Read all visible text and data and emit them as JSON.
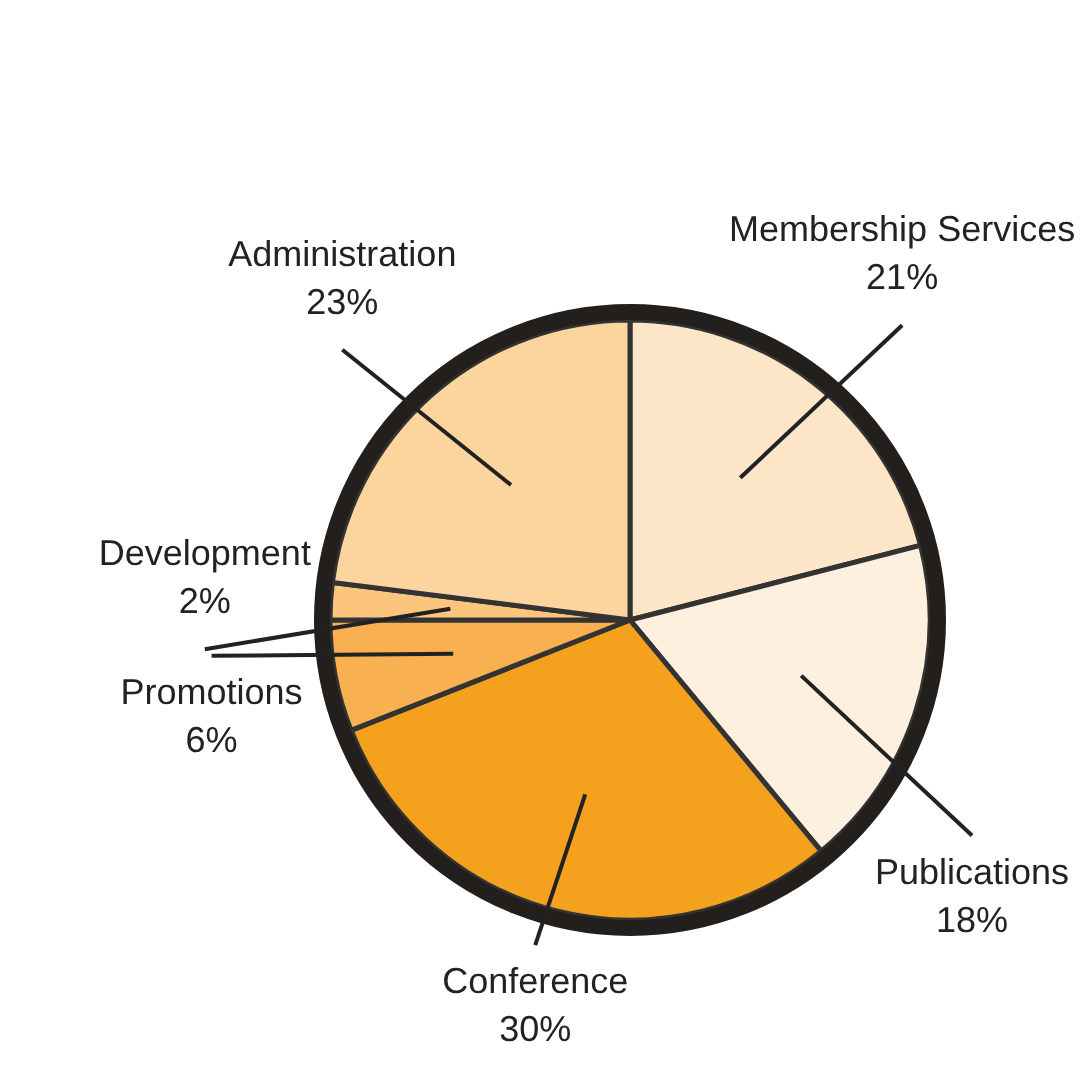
{
  "chart_data": {
    "type": "pie",
    "categories": [
      "Membership Services",
      "Publications",
      "Conference",
      "Promotions",
      "Development",
      "Administration"
    ],
    "values": [
      21,
      18,
      30,
      6,
      2,
      23
    ],
    "colors": [
      "#fde6c8",
      "#fef0de",
      "#f4a11d",
      "#f8b050",
      "#fbc57e",
      "#fcd49e"
    ],
    "value_labels": [
      "21%",
      "18%",
      "30%",
      "6%",
      "2%",
      "23%"
    ]
  }
}
